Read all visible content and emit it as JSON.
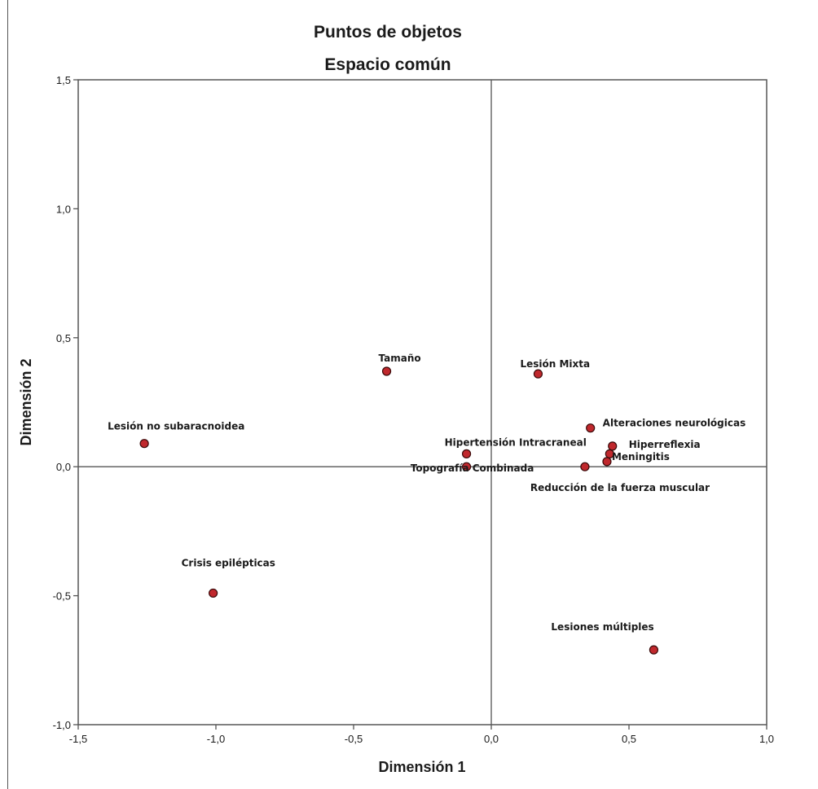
{
  "chart_data": {
    "type": "scatter",
    "title": "Puntos de objetos",
    "subtitle": "Espacio común",
    "xlabel": "Dimensión 1",
    "ylabel": "Dimensión 2",
    "xlim": [
      -1.5,
      1.0
    ],
    "ylim": [
      -1.0,
      1.5
    ],
    "x_ticks": [
      -1.5,
      -1.0,
      -0.5,
      0.0,
      0.5,
      1.0
    ],
    "y_ticks": [
      -1.0,
      -0.5,
      0.0,
      0.5,
      1.0,
      1.5
    ],
    "x_tick_labels": [
      "-1,5",
      "-1,0",
      "-0,5",
      "0,0",
      "0,5",
      "1,0"
    ],
    "y_tick_labels": [
      "-1,0",
      "-0,5",
      "0,0",
      "0,5",
      "1,0",
      "1,5"
    ],
    "grid": false,
    "reference_lines": {
      "x": 0.0,
      "y": 0.0
    },
    "marker_color": "#c0282d",
    "marker_edge_color": "#3a0a0a",
    "points": [
      {
        "label": "Tamaño",
        "x": -0.38,
        "y": 0.37
      },
      {
        "label": "Lesión Mixta",
        "x": 0.17,
        "y": 0.36
      },
      {
        "label": "Lesión no subaracnoidea",
        "x": -1.26,
        "y": 0.09
      },
      {
        "label": "Alteraciones neurológicas",
        "x": 0.36,
        "y": 0.15
      },
      {
        "label": "Hipertensión Intracraneal",
        "x": -0.09,
        "y": 0.05
      },
      {
        "label": "Hiperreflexia",
        "x": 0.44,
        "y": 0.08
      },
      {
        "label": "",
        "x": 0.43,
        "y": 0.05
      },
      {
        "label": "Meningitis",
        "x": 0.42,
        "y": 0.02
      },
      {
        "label": "Topografía Combinada",
        "x": -0.09,
        "y": 0.0
      },
      {
        "label": "Reducción de la fuerza muscular",
        "x": 0.34,
        "y": 0.0
      },
      {
        "label": "Crisis epilépticas",
        "x": -1.01,
        "y": -0.49
      },
      {
        "label": "Lesiones múltiples",
        "x": 0.59,
        "y": -0.71
      }
    ]
  }
}
